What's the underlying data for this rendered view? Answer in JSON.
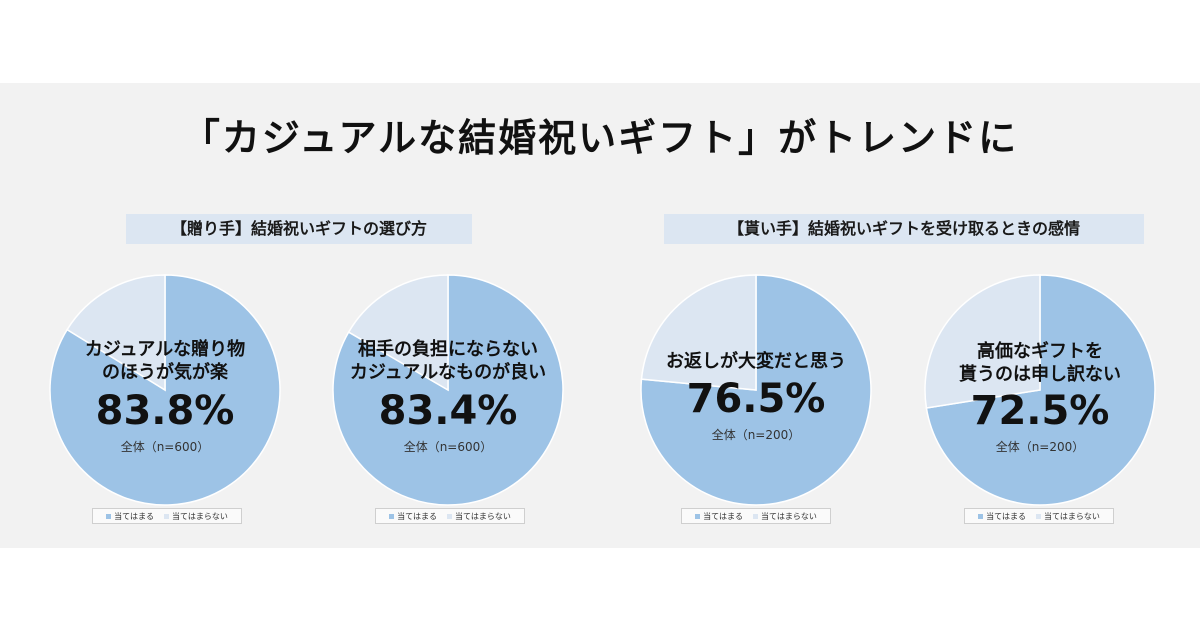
{
  "title": "「カジュアルな結婚祝いギフト」がトレンドに",
  "sections": {
    "giver": "【贈り手】結婚祝いギフトの選び方",
    "receiver": "【貰い手】結婚祝いギフトを受け取るときの感情"
  },
  "legend": {
    "applies": "当てはまる",
    "not_applies": "当てはまらない"
  },
  "colors": {
    "applies": "#9dc3e6",
    "not_applies": "#dce6f2",
    "label_bg": "#dce6f2"
  },
  "chart_data": [
    {
      "type": "pie",
      "caption_line1": "カジュアルな贈り物",
      "caption_line2": "のほうが気が楽",
      "value_label": "83.8%",
      "n_label": "全体（n=600）",
      "slices": [
        {
          "label": "当てはまる",
          "value": 83.8
        },
        {
          "label": "当てはまらない",
          "value": 16.2
        }
      ]
    },
    {
      "type": "pie",
      "caption_line1": "相手の負担にならない",
      "caption_line2": "カジュアルなものが良い",
      "value_label": "83.4%",
      "n_label": "全体（n=600）",
      "slices": [
        {
          "label": "当てはまる",
          "value": 83.4
        },
        {
          "label": "当てはまらない",
          "value": 16.6
        }
      ]
    },
    {
      "type": "pie",
      "caption_line1": "お返しが大変だと思う",
      "caption_line2": "",
      "value_label": "76.5%",
      "n_label": "全体（n=200）",
      "slices": [
        {
          "label": "当てはまる",
          "value": 76.5
        },
        {
          "label": "当てはまらない",
          "value": 23.5
        }
      ]
    },
    {
      "type": "pie",
      "caption_line1": "高価なギフトを",
      "caption_line2": "貰うのは申し訳ない",
      "value_label": "72.5%",
      "n_label": "全体（n=200）",
      "slices": [
        {
          "label": "当てはまる",
          "value": 72.5
        },
        {
          "label": "当てはまらない",
          "value": 27.5
        }
      ]
    }
  ]
}
